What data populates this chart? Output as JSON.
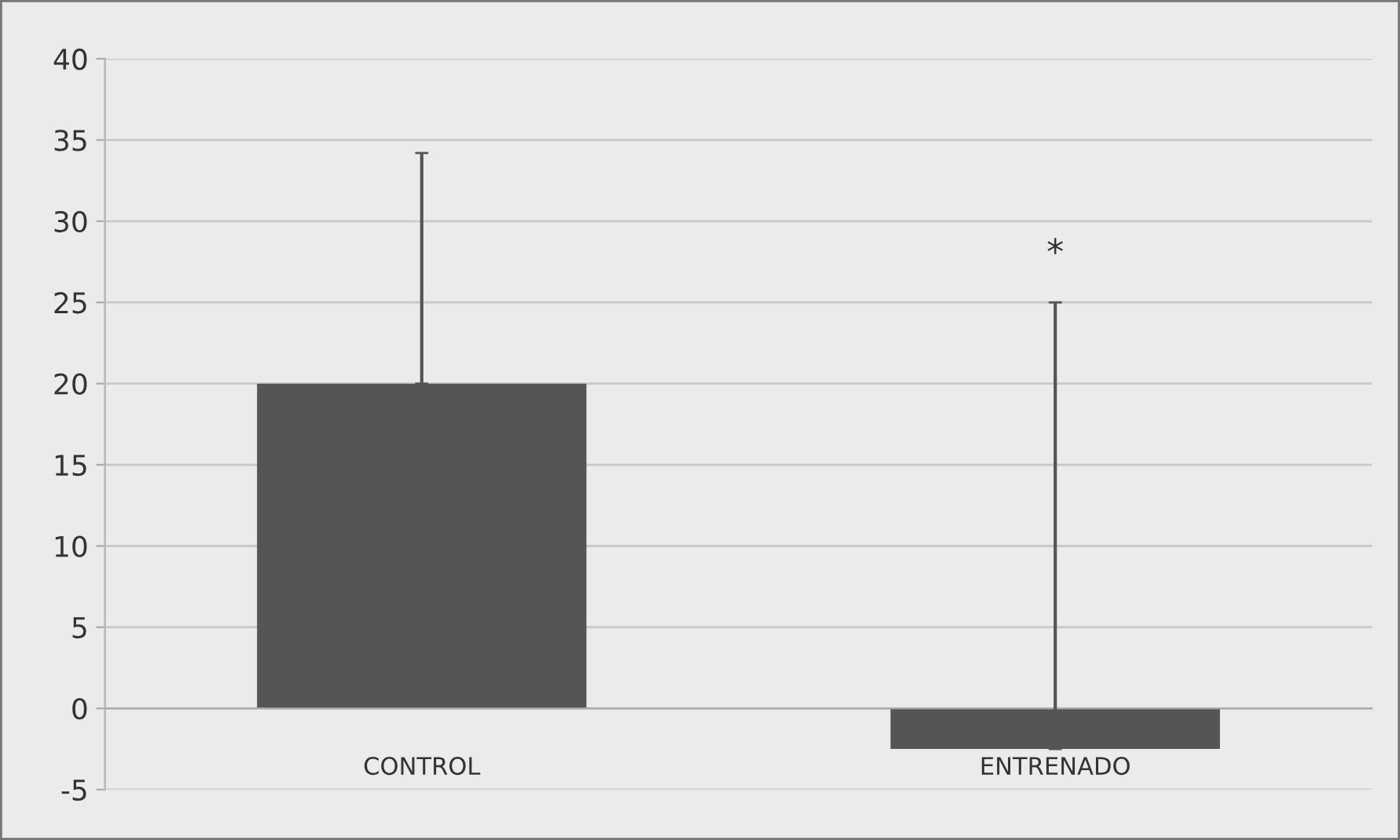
{
  "chart_data": {
    "type": "bar",
    "categories": [
      "CONTROL",
      "ENTRENADO"
    ],
    "values": [
      20,
      -2.5
    ],
    "errors": [
      [
        20,
        34.2
      ],
      [
        -2.5,
        25
      ]
    ],
    "color": "#555555",
    "ylim": [
      -5,
      40
    ],
    "yticks": [
      -5,
      0,
      5,
      10,
      15,
      20,
      25,
      30,
      35,
      40
    ],
    "grid": "y",
    "annotations": [
      "*"
    ]
  }
}
